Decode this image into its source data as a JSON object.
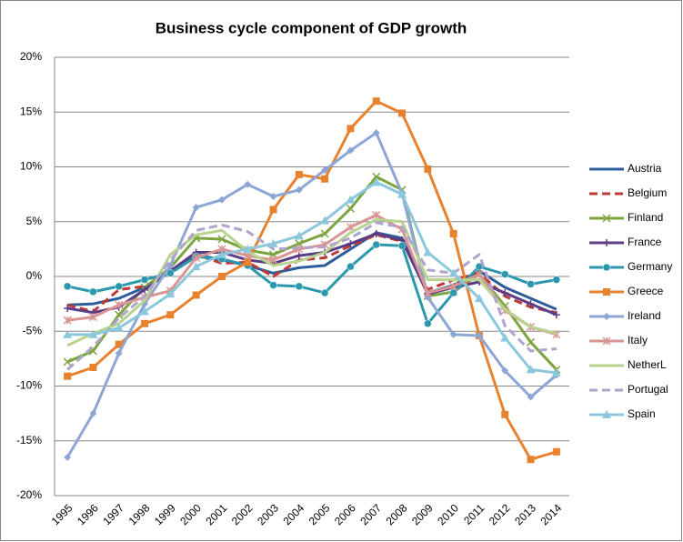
{
  "chart_data": {
    "type": "line",
    "title": "Business cycle component of GDP growth",
    "categories": [
      "1995",
      "1996",
      "1997",
      "1998",
      "1999",
      "2000",
      "2001",
      "2002",
      "2003",
      "2004",
      "2005",
      "2006",
      "2007",
      "2008",
      "2009",
      "2010",
      "2011",
      "2012",
      "2013",
      "2014"
    ],
    "ylim": [
      -20,
      20
    ],
    "yticks": [
      {
        "value": -20,
        "label": "-20%"
      },
      {
        "value": -15,
        "label": "-15%"
      },
      {
        "value": -10,
        "label": "-10%"
      },
      {
        "value": -5,
        "label": "-5%"
      },
      {
        "value": 0,
        "label": "0%"
      },
      {
        "value": 5,
        "label": "5%"
      },
      {
        "value": 10,
        "label": "10%"
      },
      {
        "value": 15,
        "label": "15%"
      },
      {
        "value": 20,
        "label": "20%"
      }
    ],
    "grid": true,
    "legend": "right",
    "series": [
      {
        "name": "Austria",
        "color": "#2e5e99",
        "marker": "none",
        "dashed": false,
        "values": [
          -2.6,
          -2.5,
          -2.0,
          -1.0,
          0.5,
          2.0,
          1.5,
          1.0,
          0.3,
          0.8,
          1.0,
          2.5,
          4.0,
          3.5,
          -1.5,
          -0.8,
          0.5,
          -1.0,
          -2.0,
          -3.0
        ]
      },
      {
        "name": "Belgium",
        "color": "#be3a36",
        "marker": "none",
        "dashed": true,
        "values": [
          -2.6,
          -3.2,
          -1.2,
          -0.9,
          0.5,
          2.0,
          1.2,
          1.3,
          0.0,
          1.5,
          1.7,
          2.8,
          3.8,
          3.2,
          -1.2,
          -0.3,
          0.3,
          -1.8,
          -2.8,
          -3.3
        ]
      },
      {
        "name": "Finland",
        "color": "#7ca540",
        "marker": "x",
        "dashed": false,
        "values": [
          -7.8,
          -6.8,
          -3.5,
          -1.0,
          0.8,
          3.5,
          3.4,
          2.4,
          2.0,
          3.0,
          3.9,
          6.2,
          9.1,
          7.9,
          -1.8,
          -1.4,
          0.2,
          -2.7,
          -6.0,
          -8.5
        ]
      },
      {
        "name": "France",
        "color": "#5b3d86",
        "marker": "plus",
        "dashed": false,
        "values": [
          -2.9,
          -3.3,
          -2.8,
          -1.2,
          0.5,
          2.2,
          2.2,
          1.5,
          1.2,
          1.9,
          2.2,
          3.0,
          3.9,
          3.3,
          -1.6,
          -1.0,
          -0.5,
          -1.5,
          -2.5,
          -3.5
        ]
      },
      {
        "name": "Germany",
        "color": "#2b98ae",
        "marker": "circle",
        "dashed": false,
        "values": [
          -0.9,
          -1.4,
          -0.9,
          -0.3,
          0.3,
          1.8,
          1.6,
          1.0,
          -0.8,
          -0.9,
          -1.5,
          0.9,
          2.9,
          2.8,
          -4.3,
          -1.5,
          0.9,
          0.2,
          -0.7,
          -0.3
        ]
      },
      {
        "name": "Greece",
        "color": "#e8822f",
        "marker": "square",
        "dashed": false,
        "values": [
          -9.1,
          -8.3,
          -6.2,
          -4.3,
          -3.5,
          -1.7,
          0.0,
          1.3,
          6.1,
          9.3,
          8.9,
          13.5,
          16.0,
          14.9,
          9.8,
          3.9,
          -5.4,
          -12.6,
          -16.7,
          -16.0
        ]
      },
      {
        "name": "Ireland",
        "color": "#8ea6d6",
        "marker": "diamond",
        "dashed": false,
        "values": [
          -16.5,
          -12.5,
          -7.0,
          -2.5,
          1.0,
          6.3,
          7.0,
          8.4,
          7.3,
          7.9,
          9.7,
          11.5,
          13.1,
          7.6,
          -1.9,
          -5.3,
          -5.4,
          -8.6,
          -11.0,
          -9.0
        ]
      },
      {
        "name": "Italy",
        "color": "#d99594",
        "marker": "star",
        "dashed": false,
        "values": [
          -4.0,
          -3.7,
          -2.6,
          -1.9,
          -1.3,
          1.7,
          2.5,
          1.9,
          1.5,
          2.5,
          2.9,
          4.5,
          5.6,
          4.3,
          -1.5,
          -0.9,
          0.2,
          -3.1,
          -4.6,
          -5.3
        ]
      },
      {
        "name": "NetherL",
        "color": "#b8d38e",
        "marker": "none",
        "dashed": false,
        "values": [
          -6.3,
          -5.2,
          -4.3,
          -2.2,
          2.0,
          3.8,
          4.2,
          2.3,
          1.0,
          1.4,
          2.2,
          4.0,
          5.2,
          5.0,
          -0.3,
          -0.3,
          -0.3,
          -3.0,
          -4.6,
          -5.2
        ]
      },
      {
        "name": "Portugal",
        "color": "#b0a3cc",
        "marker": "none",
        "dashed": true,
        "values": [
          -8.5,
          -6.4,
          -3.8,
          -1.8,
          1.5,
          4.2,
          4.7,
          4.1,
          2.5,
          2.6,
          2.7,
          3.5,
          4.9,
          4.5,
          0.6,
          0.3,
          2.0,
          -4.5,
          -6.8,
          -6.6
        ]
      },
      {
        "name": "Spain",
        "color": "#8cc8dc",
        "marker": "triangle",
        "dashed": false,
        "values": [
          -5.3,
          -5.3,
          -4.7,
          -3.2,
          -1.6,
          0.9,
          2.0,
          2.5,
          3.0,
          3.7,
          5.1,
          7.0,
          8.6,
          7.5,
          2.2,
          0.3,
          -2.0,
          -5.6,
          -8.5,
          -8.8
        ]
      }
    ]
  }
}
